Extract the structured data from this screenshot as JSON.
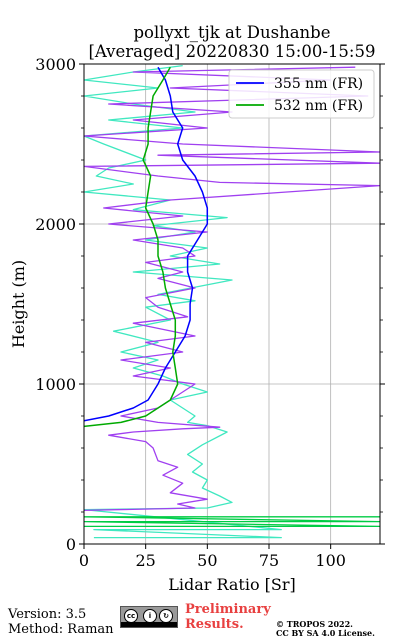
{
  "chart_data": {
    "type": "line",
    "title": [
      "pollyxt_tjk at Dushanbe",
      "[Averaged] 20220830 15:00-15:59"
    ],
    "xlabel": "Lidar Ratio [Sr]",
    "ylabel": "Height (m)",
    "xlim": [
      0,
      120
    ],
    "ylim": [
      0,
      3000
    ],
    "x_ticks": [
      0,
      25,
      50,
      75,
      100
    ],
    "y_ticks": [
      0,
      1000,
      2000,
      3000
    ],
    "grid": true,
    "legend_position": "top-right",
    "series": [
      {
        "name": "355 nm (FR)",
        "color": "#0000ff",
        "legend": true,
        "points": [
          [
            0,
            770
          ],
          [
            10,
            800
          ],
          [
            20,
            850
          ],
          [
            26,
            900
          ],
          [
            30,
            1000
          ],
          [
            33,
            1100
          ],
          [
            37,
            1200
          ],
          [
            41,
            1300
          ],
          [
            43,
            1400
          ],
          [
            43,
            1500
          ],
          [
            44,
            1600
          ],
          [
            42,
            1700
          ],
          [
            42,
            1800
          ],
          [
            46,
            1900
          ],
          [
            50,
            2000
          ],
          [
            50,
            2100
          ],
          [
            48,
            2200
          ],
          [
            45,
            2300
          ],
          [
            40,
            2400
          ],
          [
            38,
            2500
          ],
          [
            40,
            2600
          ],
          [
            36,
            2700
          ],
          [
            35,
            2800
          ],
          [
            33,
            2900
          ],
          [
            30,
            2980
          ]
        ]
      },
      {
        "name": "532 nm (FR)",
        "color": "#00aa00",
        "legend": true,
        "points": [
          [
            0,
            735
          ],
          [
            15,
            760
          ],
          [
            25,
            800
          ],
          [
            30,
            850
          ],
          [
            35,
            900
          ],
          [
            38,
            1000
          ],
          [
            37,
            1100
          ],
          [
            36,
            1200
          ],
          [
            37,
            1300
          ],
          [
            37,
            1400
          ],
          [
            35,
            1500
          ],
          [
            33,
            1600
          ],
          [
            32,
            1700
          ],
          [
            30,
            1800
          ],
          [
            30,
            1900
          ],
          [
            28,
            2000
          ],
          [
            25,
            2100
          ],
          [
            26,
            2200
          ],
          [
            27,
            2300
          ],
          [
            24,
            2400
          ],
          [
            26,
            2500
          ],
          [
            26,
            2600
          ],
          [
            27,
            2700
          ],
          [
            28,
            2800
          ],
          [
            32,
            2900
          ],
          [
            35,
            2980
          ]
        ]
      },
      {
        "name": "",
        "color": "#40e8c0",
        "legend": false,
        "points": [
          [
            4,
            40
          ],
          [
            80,
            40
          ],
          [
            4,
            90
          ],
          [
            80,
            90
          ],
          [
            0,
            215
          ],
          [
            50,
            225
          ],
          [
            60,
            260
          ],
          [
            55,
            300
          ],
          [
            48,
            350
          ],
          [
            50,
            400
          ],
          [
            44,
            450
          ],
          [
            48,
            500
          ],
          [
            42,
            560
          ],
          [
            48,
            620
          ],
          [
            58,
            700
          ],
          [
            50,
            740
          ],
          [
            42,
            760
          ],
          [
            45,
            800
          ],
          [
            35,
            900
          ],
          [
            50,
            950
          ],
          [
            40,
            1000
          ],
          [
            32,
            1050
          ],
          [
            20,
            1100
          ],
          [
            30,
            1150
          ],
          [
            15,
            1200
          ],
          [
            30,
            1260
          ],
          [
            12,
            1330
          ],
          [
            35,
            1400
          ],
          [
            25,
            1480
          ],
          [
            45,
            1520
          ],
          [
            30,
            1560
          ],
          [
            60,
            1650
          ],
          [
            20,
            1700
          ],
          [
            55,
            1750
          ],
          [
            35,
            1800
          ],
          [
            50,
            1850
          ],
          [
            25,
            1900
          ],
          [
            45,
            1950
          ],
          [
            28,
            1990
          ],
          [
            58,
            2040
          ],
          [
            20,
            2090
          ],
          [
            35,
            2150
          ],
          [
            0,
            2200
          ],
          [
            20,
            2250
          ],
          [
            5,
            2300
          ],
          [
            10,
            2350
          ],
          [
            25,
            2400
          ],
          [
            8,
            2500
          ],
          [
            0,
            2550
          ],
          [
            40,
            2600
          ],
          [
            10,
            2650
          ],
          [
            45,
            2700
          ],
          [
            20,
            2750
          ],
          [
            0,
            2800
          ],
          [
            30,
            2850
          ],
          [
            0,
            2900
          ],
          [
            20,
            2950
          ],
          [
            40,
            2990
          ]
        ]
      },
      {
        "name": "",
        "color": "#a040f0",
        "legend": false,
        "points": [
          [
            0,
            210
          ],
          [
            45,
            225
          ],
          [
            38,
            250
          ],
          [
            50,
            280
          ],
          [
            35,
            320
          ],
          [
            40,
            380
          ],
          [
            32,
            430
          ],
          [
            38,
            480
          ],
          [
            30,
            520
          ],
          [
            28,
            600
          ],
          [
            25,
            640
          ],
          [
            10,
            680
          ],
          [
            20,
            700
          ],
          [
            40,
            720
          ],
          [
            55,
            730
          ],
          [
            30,
            760
          ],
          [
            15,
            800
          ],
          [
            30,
            850
          ],
          [
            35,
            900
          ],
          [
            40,
            950
          ],
          [
            45,
            1000
          ],
          [
            20,
            1050
          ],
          [
            35,
            1100
          ],
          [
            15,
            1150
          ],
          [
            40,
            1200
          ],
          [
            25,
            1260
          ],
          [
            45,
            1300
          ],
          [
            20,
            1380
          ],
          [
            42,
            1420
          ],
          [
            30,
            1480
          ],
          [
            25,
            1540
          ],
          [
            45,
            1600
          ],
          [
            30,
            1660
          ],
          [
            40,
            1700
          ],
          [
            25,
            1760
          ],
          [
            45,
            1800
          ],
          [
            40,
            1850
          ],
          [
            20,
            1900
          ],
          [
            50,
            1950
          ],
          [
            10,
            2000
          ],
          [
            40,
            2050
          ],
          [
            8,
            2100
          ],
          [
            35,
            2150
          ],
          [
            120,
            2240
          ],
          [
            55,
            2260
          ],
          [
            30,
            2300
          ],
          [
            0,
            2360
          ],
          [
            120,
            2380
          ],
          [
            30,
            2430
          ],
          [
            120,
            2450
          ],
          [
            40,
            2500
          ],
          [
            0,
            2550
          ],
          [
            50,
            2600
          ],
          [
            20,
            2650
          ],
          [
            60,
            2700
          ],
          [
            10,
            2750
          ],
          [
            115,
            2800
          ],
          [
            35,
            2850
          ],
          [
            100,
            2900
          ],
          [
            20,
            2950
          ],
          [
            110,
            2980
          ]
        ]
      },
      {
        "name": "",
        "color": "#00cc44",
        "legend": false,
        "points": [
          [
            0,
            110
          ],
          [
            120,
            110
          ],
          [
            0,
            140
          ],
          [
            120,
            140
          ],
          [
            0,
            170
          ],
          [
            120,
            170
          ]
        ]
      }
    ]
  },
  "footer": {
    "version": "Version: 3.5",
    "method": "Method: Raman",
    "cc_text": "BY SA",
    "preliminary_1": "Preliminary",
    "preliminary_2": "Results.",
    "copyright_1": "© TROPOS 2022.",
    "copyright_2": "CC BY SA 4.0 License."
  }
}
